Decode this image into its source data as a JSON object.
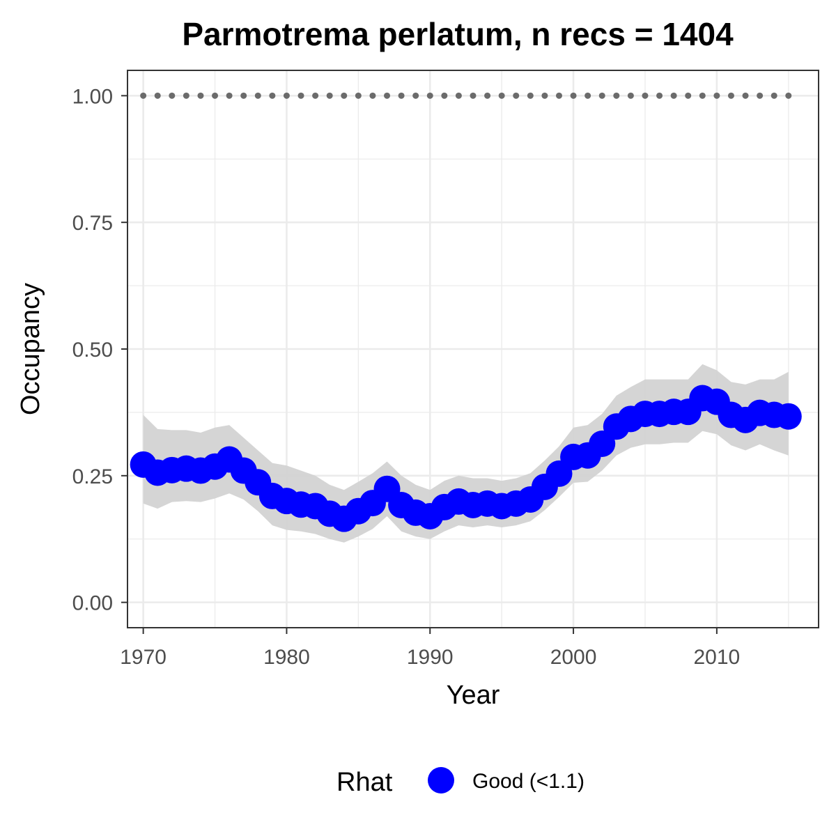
{
  "chart_data": {
    "type": "line",
    "title": "Parmotrema perlatum, n recs = 1404",
    "xlabel": "Year",
    "ylabel": "Occupancy",
    "xlim": [
      1968.9,
      2017.1
    ],
    "ylim": [
      -0.05,
      1.05
    ],
    "x_ticks": [
      1970,
      1980,
      1990,
      2000,
      2010
    ],
    "x_tick_labels": [
      "1970",
      "1980",
      "1990",
      "2000",
      "2010"
    ],
    "y_ticks": [
      0.0,
      0.25,
      0.5,
      0.75,
      1.0
    ],
    "y_tick_labels": [
      "0.00",
      "0.25",
      "0.50",
      "0.75",
      "1.00"
    ],
    "grid": true,
    "colors": {
      "point": "#0000ff",
      "ribbon": "#d3d3d3",
      "reference": "#6b6b6b",
      "grid": "#ebebeb",
      "panel_border": "#333333"
    },
    "x": [
      1970,
      1971,
      1972,
      1973,
      1974,
      1975,
      1976,
      1977,
      1978,
      1979,
      1980,
      1981,
      1982,
      1983,
      1984,
      1985,
      1986,
      1987,
      1988,
      1989,
      1990,
      1991,
      1992,
      1993,
      1994,
      1995,
      1996,
      1997,
      1998,
      1999,
      2000,
      2001,
      2002,
      2003,
      2004,
      2005,
      2006,
      2007,
      2008,
      2009,
      2010,
      2011,
      2012,
      2013,
      2014,
      2015
    ],
    "series": [
      {
        "name": "Good (<1.1)",
        "values": [
          0.272,
          0.256,
          0.261,
          0.264,
          0.26,
          0.268,
          0.282,
          0.26,
          0.237,
          0.21,
          0.2,
          0.193,
          0.19,
          0.175,
          0.165,
          0.18,
          0.196,
          0.224,
          0.192,
          0.177,
          0.17,
          0.188,
          0.199,
          0.192,
          0.195,
          0.19,
          0.195,
          0.203,
          0.228,
          0.254,
          0.287,
          0.29,
          0.313,
          0.347,
          0.362,
          0.372,
          0.372,
          0.376,
          0.376,
          0.403,
          0.396,
          0.37,
          0.36,
          0.374,
          0.37,
          0.367
        ],
        "lower": [
          0.195,
          0.185,
          0.198,
          0.2,
          0.198,
          0.205,
          0.215,
          0.203,
          0.18,
          0.152,
          0.143,
          0.14,
          0.135,
          0.125,
          0.118,
          0.13,
          0.145,
          0.17,
          0.14,
          0.13,
          0.125,
          0.14,
          0.152,
          0.148,
          0.152,
          0.148,
          0.152,
          0.16,
          0.182,
          0.208,
          0.236,
          0.238,
          0.26,
          0.29,
          0.305,
          0.312,
          0.312,
          0.315,
          0.315,
          0.338,
          0.332,
          0.31,
          0.3,
          0.312,
          0.3,
          0.29
        ],
        "upper": [
          0.37,
          0.342,
          0.34,
          0.34,
          0.335,
          0.345,
          0.35,
          0.325,
          0.3,
          0.275,
          0.27,
          0.26,
          0.25,
          0.232,
          0.222,
          0.238,
          0.255,
          0.278,
          0.25,
          0.232,
          0.222,
          0.24,
          0.25,
          0.245,
          0.245,
          0.24,
          0.245,
          0.255,
          0.28,
          0.308,
          0.345,
          0.35,
          0.372,
          0.408,
          0.425,
          0.44,
          0.44,
          0.44,
          0.44,
          0.47,
          0.458,
          0.435,
          0.43,
          0.44,
          0.44,
          0.455
        ]
      }
    ],
    "reference_line": {
      "y": 1.0
    },
    "legend": {
      "title": "Rhat",
      "label": "Good (<1.1)",
      "placement": "bottom"
    }
  }
}
